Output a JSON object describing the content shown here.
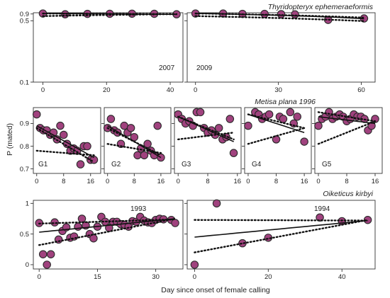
{
  "figure": {
    "ylabel": "P (mated)",
    "xlabel": "Day since onset of female calling",
    "colors": {
      "point": "#a0427e",
      "point_edge": "#2a2a2a",
      "line": "#111111"
    }
  },
  "chart_data": [
    {
      "type": "scatter",
      "group": "Thyridopteryx ephemeraeformis",
      "label": "2007",
      "xlim": [
        -3,
        44
      ],
      "ylim": [
        0.1,
        1.05
      ],
      "xticks": [
        0,
        20,
        40
      ],
      "yticks": [
        0.1,
        0.5,
        0.9
      ],
      "yscale": "reciprocal",
      "x": [
        0,
        7,
        14,
        21,
        28,
        35,
        42
      ],
      "y": [
        0.95,
        0.87,
        0.91,
        0.92,
        0.93,
        0.92,
        0.87
      ],
      "solid": {
        "x": [
          0,
          42
        ],
        "y": [
          0.96,
          0.86
        ]
      },
      "dotted_upper": {
        "x": [
          0,
          42
        ],
        "y": [
          0.95,
          0.88
        ]
      },
      "dotted_lower": {
        "x": [
          0,
          42
        ],
        "y": [
          0.72,
          0.89
        ]
      }
    },
    {
      "type": "scatter",
      "group": "Thyridopteryx ephemeraeformis",
      "label": "2009",
      "xlim": [
        -3,
        65
      ],
      "ylim": [
        0.1,
        1.05
      ],
      "xticks": [
        0,
        30,
        60
      ],
      "yticks": [
        0.1,
        0.5,
        0.9
      ],
      "yscale": "reciprocal",
      "x": [
        0,
        10,
        17,
        25,
        31,
        36,
        48,
        61
      ],
      "y": [
        0.95,
        0.95,
        0.91,
        0.91,
        0.88,
        0.86,
        0.53,
        0.59
      ],
      "solid": {
        "x": [
          0,
          61
        ],
        "y": [
          0.97,
          0.58
        ]
      },
      "dotted_upper": {
        "x": [
          0,
          61
        ],
        "y": [
          0.96,
          0.63
        ]
      },
      "dotted_lower": {
        "x": [
          0,
          61
        ],
        "y": [
          0.72,
          0.49
        ]
      }
    },
    {
      "type": "scatter",
      "group": "Metisa plana 1996",
      "label": "G1",
      "xlim": [
        -1,
        19
      ],
      "ylim": [
        0.68,
        0.97
      ],
      "xticks": [
        0,
        8,
        16
      ],
      "yticks": [
        0.7,
        0.8,
        0.9
      ],
      "x": [
        0,
        1,
        2,
        3,
        4,
        5,
        6,
        7,
        8,
        9,
        10,
        11,
        12,
        13,
        14,
        15,
        16,
        17
      ],
      "y": [
        0.94,
        0.88,
        0.87,
        0.87,
        0.85,
        0.86,
        0.83,
        0.89,
        0.85,
        0.81,
        0.78,
        0.79,
        0.78,
        0.72,
        0.8,
        0.8,
        0.74,
        0.74
      ],
      "solid": {
        "x": [
          0,
          17
        ],
        "y": [
          0.89,
          0.75
        ]
      },
      "dotted_upper": {
        "x": [
          0,
          17
        ],
        "y": [
          0.88,
          0.73
        ]
      },
      "dotted_lower": {
        "x": [
          0,
          17
        ],
        "y": [
          0.78,
          0.76
        ]
      }
    },
    {
      "type": "scatter",
      "group": "Metisa plana 1996",
      "label": "G2",
      "xlim": [
        -1,
        19
      ],
      "ylim": [
        0.68,
        0.97
      ],
      "xticks": [
        0,
        8,
        16
      ],
      "yticks": [
        0.7,
        0.8,
        0.9
      ],
      "x": [
        0,
        1,
        2,
        3,
        4,
        5,
        6,
        7,
        8,
        9,
        10,
        11,
        12,
        13,
        14,
        15,
        16
      ],
      "y": [
        0.88,
        0.92,
        0.87,
        0.86,
        0.81,
        0.89,
        0.86,
        0.88,
        0.84,
        0.76,
        0.79,
        0.76,
        0.81,
        0.78,
        0.76,
        0.89,
        0.75
      ],
      "solid": {
        "x": [
          0,
          16
        ],
        "y": [
          0.89,
          0.75
        ]
      },
      "dotted_upper": {
        "x": [
          0,
          16
        ],
        "y": [
          0.88,
          0.76
        ]
      },
      "dotted_lower": {
        "x": [
          0,
          16
        ],
        "y": [
          0.81,
          0.77
        ]
      }
    },
    {
      "type": "scatter",
      "group": "Metisa plana 1996",
      "label": "G3",
      "xlim": [
        -1,
        17
      ],
      "ylim": [
        0.68,
        0.97
      ],
      "xticks": [
        0,
        8,
        16
      ],
      "yticks": [
        0.7,
        0.8,
        0.9
      ],
      "x": [
        0,
        1,
        2,
        3,
        4,
        5,
        6,
        7,
        8,
        9,
        10,
        11,
        12,
        13,
        14,
        15
      ],
      "y": [
        0.94,
        0.92,
        0.9,
        0.91,
        0.89,
        0.95,
        0.95,
        0.88,
        0.86,
        0.87,
        0.85,
        0.88,
        0.83,
        0.84,
        0.92,
        0.77
      ],
      "solid": {
        "x": [
          0,
          15
        ],
        "y": [
          0.93,
          0.82
        ]
      },
      "dotted_upper": {
        "x": [
          0,
          15
        ],
        "y": [
          0.93,
          0.83
        ]
      },
      "dotted_lower": {
        "x": [
          0,
          15
        ],
        "y": [
          0.83,
          0.86
        ]
      }
    },
    {
      "type": "scatter",
      "group": "Metisa plana 1996",
      "label": "G4",
      "xlim": [
        -1,
        18
      ],
      "ylim": [
        0.68,
        0.97
      ],
      "xticks": [
        0,
        8,
        16
      ],
      "yticks": [
        0.7,
        0.8,
        0.9
      ],
      "x": [
        0,
        2,
        3,
        4,
        5,
        6,
        8,
        9,
        10,
        12,
        13,
        14,
        16
      ],
      "y": [
        0.89,
        0.95,
        0.94,
        0.92,
        0.93,
        0.94,
        0.83,
        0.93,
        0.92,
        0.95,
        0.9,
        0.93,
        0.82
      ],
      "solid": {
        "x": [
          0,
          16
        ],
        "y": [
          0.94,
          0.86
        ]
      },
      "dotted_upper": {
        "x": [
          0,
          16
        ],
        "y": [
          0.94,
          0.88
        ]
      },
      "dotted_lower": {
        "x": [
          0,
          16
        ],
        "y": [
          0.81,
          0.88
        ]
      }
    },
    {
      "type": "scatter",
      "group": "Metisa plana 1996",
      "label": "G5",
      "xlim": [
        -1,
        18
      ],
      "ylim": [
        0.68,
        0.97
      ],
      "xticks": [
        0,
        8,
        16
      ],
      "yticks": [
        0.7,
        0.8,
        0.9
      ],
      "x": [
        0,
        1,
        2,
        3,
        4,
        5,
        6,
        7,
        8,
        9,
        10,
        11,
        12,
        13,
        14,
        15,
        16
      ],
      "y": [
        0.89,
        0.92,
        0.93,
        0.95,
        0.92,
        0.93,
        0.94,
        0.93,
        0.91,
        0.92,
        0.94,
        0.93,
        0.93,
        0.92,
        0.87,
        0.89,
        0.92
      ],
      "solid": {
        "x": [
          0,
          16
        ],
        "y": [
          0.93,
          0.9
        ]
      },
      "dotted_upper": {
        "x": [
          0,
          16
        ],
        "y": [
          0.95,
          0.91
        ]
      },
      "dotted_lower": {
        "x": [
          0,
          16
        ],
        "y": [
          0.81,
          0.91
        ]
      }
    },
    {
      "type": "scatter",
      "group": "Oiketicus kirbyi",
      "label": "1993",
      "xlim": [
        -1.5,
        37
      ],
      "ylim": [
        -0.07,
        1.05
      ],
      "xticks": [
        0,
        15,
        30
      ],
      "yticks": [
        0.0,
        0.5,
        1.0
      ],
      "x": [
        0,
        1,
        2,
        3,
        4,
        5,
        6,
        7,
        8,
        9,
        10,
        11,
        12,
        13,
        14,
        15,
        16,
        17,
        18,
        19,
        20,
        21,
        22,
        23,
        24,
        25,
        26,
        27,
        28,
        29,
        30,
        31,
        32,
        34,
        35
      ],
      "y": [
        0.68,
        0.17,
        0.0,
        0.17,
        0.69,
        0.41,
        0.55,
        0.61,
        0.44,
        0.46,
        0.62,
        0.75,
        0.64,
        0.5,
        0.43,
        0.62,
        0.78,
        0.7,
        0.6,
        0.7,
        0.7,
        0.66,
        0.65,
        0.62,
        0.71,
        0.7,
        0.78,
        0.72,
        0.69,
        0.68,
        0.73,
        0.75,
        0.74,
        0.73,
        0.68
      ],
      "solid": {
        "x": [
          0,
          35
        ],
        "y": [
          0.53,
          0.75
        ]
      },
      "dotted_upper": {
        "x": [
          0,
          35
        ],
        "y": [
          0.67,
          0.74
        ]
      },
      "dotted_lower": {
        "x": [
          0,
          35
        ],
        "y": [
          0.32,
          0.75
        ]
      }
    },
    {
      "type": "scatter",
      "group": "Oiketicus kirbyi",
      "label": "1994",
      "xlim": [
        -2,
        49
      ],
      "ylim": [
        -0.07,
        1.05
      ],
      "xticks": [
        0,
        20,
        40
      ],
      "yticks": [
        0.0,
        0.5,
        1.0
      ],
      "x": [
        0,
        6,
        13,
        20,
        34,
        40,
        47
      ],
      "y": [
        0.0,
        1.0,
        0.35,
        0.44,
        0.77,
        0.71,
        0.73
      ],
      "solid": {
        "x": [
          0,
          47
        ],
        "y": [
          0.45,
          0.72
        ]
      },
      "dotted_upper": {
        "x": [
          0,
          47
        ],
        "y": [
          0.73,
          0.72
        ]
      },
      "dotted_lower": {
        "x": [
          0,
          47
        ],
        "y": [
          0.2,
          0.73
        ]
      }
    }
  ]
}
